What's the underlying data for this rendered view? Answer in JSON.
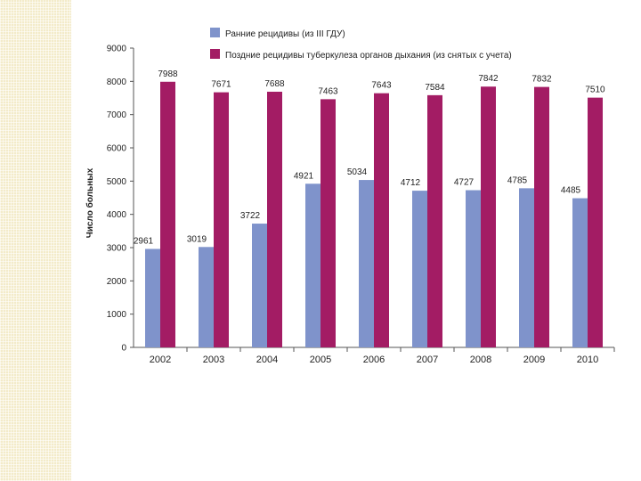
{
  "chart_data": {
    "type": "bar",
    "title": "",
    "xlabel": "",
    "ylabel": "Число больных",
    "categories": [
      "2002",
      "2003",
      "2004",
      "2005",
      "2006",
      "2007",
      "2008",
      "2009",
      "2010"
    ],
    "series": [
      {
        "name": "Ранние рецидивы (из III ГДУ)",
        "color": "#7f93cb",
        "values": [
          2961,
          3019,
          3722,
          4921,
          5034,
          4712,
          4727,
          4785,
          4485
        ],
        "labels": [
          "2961",
          "3019",
          "3722",
          "4921",
          "5034",
          "4712",
          "4727",
          "4785",
          "4485"
        ]
      },
      {
        "name": "Поздние рецидивы туберкулеза органов дыхания (из снятых с учета)",
        "color": "#a31c64",
        "values": [
          7988,
          7671,
          7688,
          7463,
          7643,
          7584,
          7842,
          7832,
          7510
        ],
        "labels": [
          "7988",
          "7671",
          "7688",
          "7463",
          "7643",
          "7584",
          "7842",
          "7832",
          "7510"
        ]
      }
    ],
    "ylim": [
      0,
      9000
    ],
    "yticks": [
      "0",
      "1000",
      "2000",
      "3000",
      "4000",
      "5000",
      "6000",
      "7000",
      "8000",
      "9000"
    ],
    "grid": false,
    "legend_position": "top"
  }
}
